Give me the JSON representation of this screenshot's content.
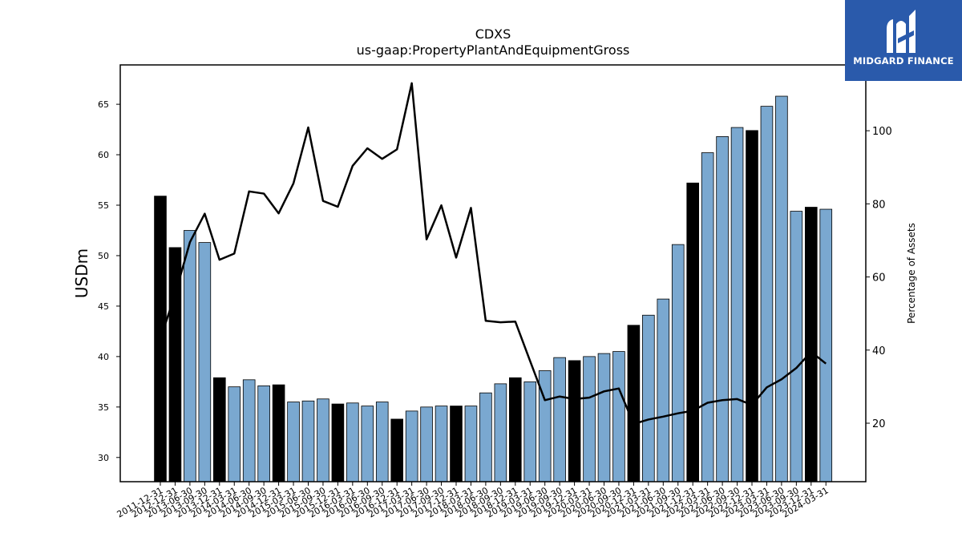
{
  "chart_data": {
    "type": "bar",
    "title": "CDXS",
    "subtitle": "us-gaap:PropertyPlantAndEquipmentGross",
    "ylabel": "USDm",
    "y2label": "Percentage of Assets",
    "ylim": [
      27.6,
      68.9
    ],
    "y2lim": [
      4,
      118
    ],
    "yticks": [
      30,
      35,
      40,
      45,
      50,
      55,
      60,
      65
    ],
    "y2ticks": [
      20,
      40,
      60,
      80,
      100
    ],
    "grid": false,
    "colors": {
      "annual_bar": "#000000",
      "quarter_bar": "#7aa8d0",
      "line": "#000000"
    },
    "categories": [
      "2011-12-31",
      "2012-12-31",
      "2013-06-30",
      "2013-09-30",
      "2013-12-31",
      "2014-03-31",
      "2014-06-30",
      "2014-09-30",
      "2014-12-31",
      "2015-03-31",
      "2015-06-30",
      "2015-09-30",
      "2015-12-31",
      "2016-03-31",
      "2016-06-30",
      "2016-09-30",
      "2016-12-31",
      "2017-03-31",
      "2017-06-30",
      "2017-09-30",
      "2017-12-31",
      "2018-03-31",
      "2018-06-30",
      "2018-09-30",
      "2018-12-31",
      "2019-03-31",
      "2019-06-30",
      "2019-09-30",
      "2019-12-31",
      "2020-03-31",
      "2020-06-30",
      "2020-09-30",
      "2020-12-31",
      "2021-03-31",
      "2021-06-30",
      "2021-09-30",
      "2021-12-31",
      "2022-03-31",
      "2022-06-30",
      "2022-09-30",
      "2022-12-31",
      "2023-03-31",
      "2023-06-30",
      "2023-09-30",
      "2023-12-31",
      "2024-03-31"
    ],
    "series": [
      {
        "type": "bar",
        "values": [
          55.9,
          50.8,
          52.5,
          51.3,
          37.9,
          37.0,
          37.7,
          37.1,
          37.2,
          35.5,
          35.6,
          35.8,
          35.3,
          35.4,
          35.1,
          35.5,
          33.8,
          34.6,
          35.0,
          35.1,
          35.1,
          35.1,
          36.4,
          37.3,
          37.9,
          37.5,
          38.6,
          39.9,
          39.6,
          40.0,
          40.3,
          40.5,
          43.1,
          44.1,
          45.7,
          51.1,
          57.2,
          60.2,
          61.8,
          62.7,
          62.4,
          64.8,
          65.8,
          54.4,
          54.8,
          54.6
        ],
        "annual": [
          true,
          true,
          false,
          false,
          true,
          false,
          false,
          false,
          true,
          false,
          false,
          false,
          true,
          false,
          false,
          false,
          true,
          false,
          false,
          false,
          true,
          false,
          false,
          false,
          true,
          false,
          false,
          false,
          true,
          false,
          false,
          false,
          true,
          false,
          false,
          false,
          true,
          false,
          false,
          false,
          true,
          false,
          false,
          false,
          true,
          false
        ]
      },
      {
        "type": "line",
        "axis": "right",
        "values": [
          43.0,
          55.3,
          69.5,
          77.3,
          64.7,
          66.4,
          83.4,
          82.8,
          77.4,
          85.6,
          100.9,
          80.8,
          79.2,
          90.4,
          95.2,
          92.3,
          94.9,
          113.0,
          70.3,
          79.6,
          65.3,
          78.9,
          48.0,
          47.6,
          47.8,
          37.0,
          26.3,
          27.3,
          26.6,
          27.0,
          28.7,
          29.5,
          19.8,
          21.0,
          21.8,
          22.7,
          23.4,
          25.6,
          26.3,
          26.6,
          25.0,
          29.8,
          32.0,
          35.1,
          39.5,
          36.3
        ]
      }
    ]
  },
  "logo": {
    "text": "MIDGARD FINANCE"
  }
}
